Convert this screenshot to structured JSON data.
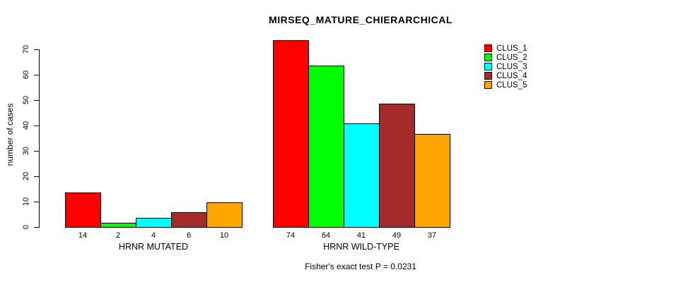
{
  "title": "MIRSEQ_MATURE_CHIERARCHICAL",
  "subtitle": "Fisher's exact test P = 0.0231",
  "chart_data": {
    "type": "bar",
    "title": "MIRSEQ_MATURE_CHIERARCHICAL",
    "annotation": "Fisher's exact test P = 0.0231",
    "ylabel": "number of cases",
    "xlabel": "",
    "ylim": [
      0,
      70
    ],
    "yticks": [
      0,
      10,
      20,
      30,
      40,
      50,
      60,
      70
    ],
    "grid": false,
    "legend_position": "right",
    "categories": [
      "HRNR MUTATED",
      "HRNR WILD-TYPE"
    ],
    "groups": [
      {
        "label": "HRNR MUTATED",
        "values": [
          14,
          2,
          4,
          6,
          10
        ]
      },
      {
        "label": "HRNR WILD-TYPE",
        "values": [
          74,
          64,
          41,
          49,
          37
        ]
      }
    ],
    "series": [
      {
        "name": "CLUS_1",
        "color": "#FF0000",
        "values": [
          14,
          74
        ]
      },
      {
        "name": "CLUS_2",
        "color": "#00FF00",
        "values": [
          2,
          64
        ]
      },
      {
        "name": "CLUS_3",
        "color": "#00FFFF",
        "values": [
          4,
          41
        ]
      },
      {
        "name": "CLUS_4",
        "color": "#A52A2A",
        "values": [
          6,
          49
        ]
      },
      {
        "name": "CLUS_5",
        "color": "#FFA500",
        "values": [
          10,
          37
        ]
      }
    ]
  }
}
